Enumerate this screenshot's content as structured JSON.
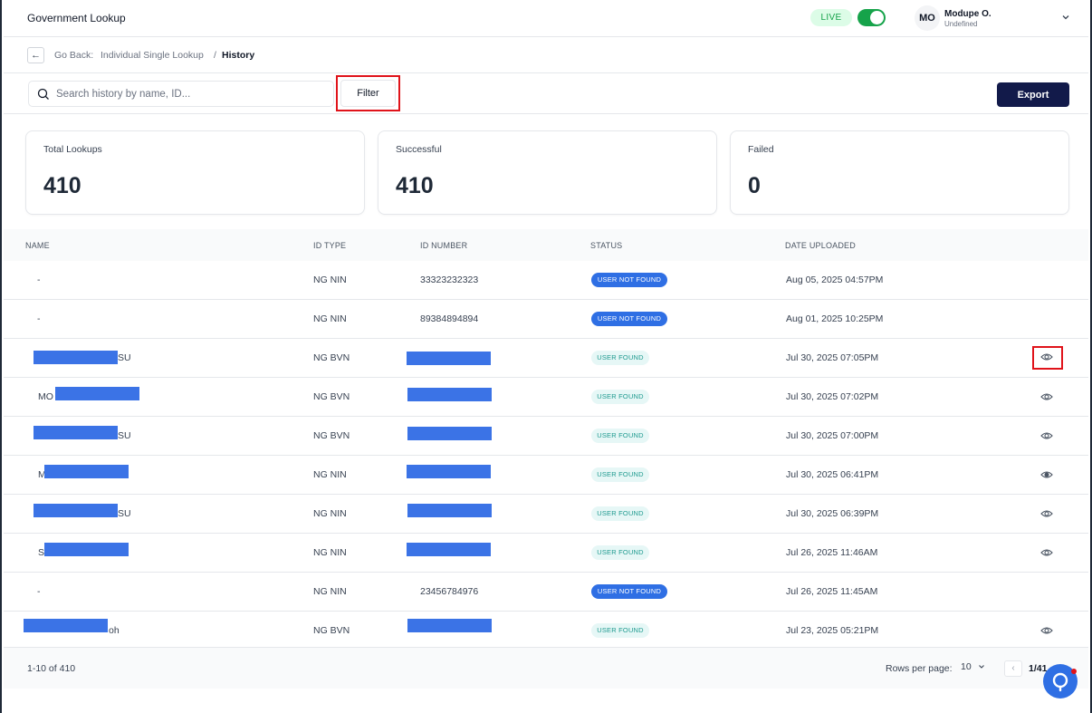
{
  "app": {
    "title": "Government Lookup"
  },
  "header": {
    "env_badge": "LIVE",
    "user": {
      "initials": "MO",
      "name": "Modupe O.",
      "role": "Undefined"
    }
  },
  "breadcrumb": {
    "back_prefix": "Go Back:",
    "parent": "Individual Single Lookup",
    "separator": "/",
    "current": "History"
  },
  "toolbar": {
    "search_placeholder": "Search history by name, ID...",
    "filter_label": "Filter",
    "export_label": "Export"
  },
  "stats": [
    {
      "label": "Total Lookups",
      "value": "410"
    },
    {
      "label": "Successful",
      "value": "410"
    },
    {
      "label": "Failed",
      "value": "0"
    }
  ],
  "table": {
    "columns": [
      "NAME",
      "ID TYPE",
      "ID NUMBER",
      "STATUS",
      "DATE UPLOADED"
    ],
    "rows": [
      {
        "name": "-",
        "id_type": "NG NIN",
        "id_number": "33323232323",
        "status": "USER NOT FOUND",
        "date": "Aug 05, 2025 04:57PM"
      },
      {
        "name": "-",
        "id_type": "NG NIN",
        "id_number": "89384894894",
        "status": "USER NOT FOUND",
        "date": "Aug 01, 2025 10:25PM"
      },
      {
        "name": "SU",
        "id_type": "NG BVN",
        "id_number": "",
        "status": "USER FOUND",
        "date": "Jul 30, 2025 07:05PM"
      },
      {
        "name": "MO",
        "id_type": "NG BVN",
        "id_number": "",
        "status": "USER FOUND",
        "date": "Jul 30, 2025 07:02PM"
      },
      {
        "name": "SU",
        "id_type": "NG BVN",
        "id_number": "",
        "status": "USER FOUND",
        "date": "Jul 30, 2025 07:00PM"
      },
      {
        "name": "M",
        "id_type": "NG NIN",
        "id_number": "",
        "status": "USER FOUND",
        "date": "Jul 30, 2025 06:41PM"
      },
      {
        "name": "SU",
        "id_type": "NG NIN",
        "id_number": "",
        "status": "USER FOUND",
        "date": "Jul 30, 2025 06:39PM"
      },
      {
        "name": "S",
        "id_type": "NG NIN",
        "id_number": "",
        "status": "USER FOUND",
        "date": "Jul 26, 2025 11:46AM"
      },
      {
        "name": "-",
        "id_type": "NG NIN",
        "id_number": "23456784976",
        "status": "USER NOT FOUND",
        "date": "Jul 26, 2025 11:45AM"
      },
      {
        "name": "oh",
        "id_type": "NG BVN",
        "id_number": "",
        "status": "USER FOUND",
        "date": "Jul 23, 2025 05:21PM"
      }
    ]
  },
  "pagination": {
    "range": "1-10 of 410",
    "rows_per_page_label": "Rows per page:",
    "rows_per_page": "10",
    "prev_label": "‹",
    "page": "1/41"
  },
  "colors": {
    "primary_button": "#121a4a",
    "live_green": "#16a34a",
    "not_found_badge": "#2f6fe4",
    "found_badge_bg": "#e6f7f6",
    "redaction": "#3b73e6",
    "highlight": "#e0131a"
  },
  "icons": {
    "back": "arrow-left-icon",
    "search": "search-icon",
    "view": "eye-icon",
    "chevron": "chevron-down-icon",
    "help": "support-icon"
  }
}
